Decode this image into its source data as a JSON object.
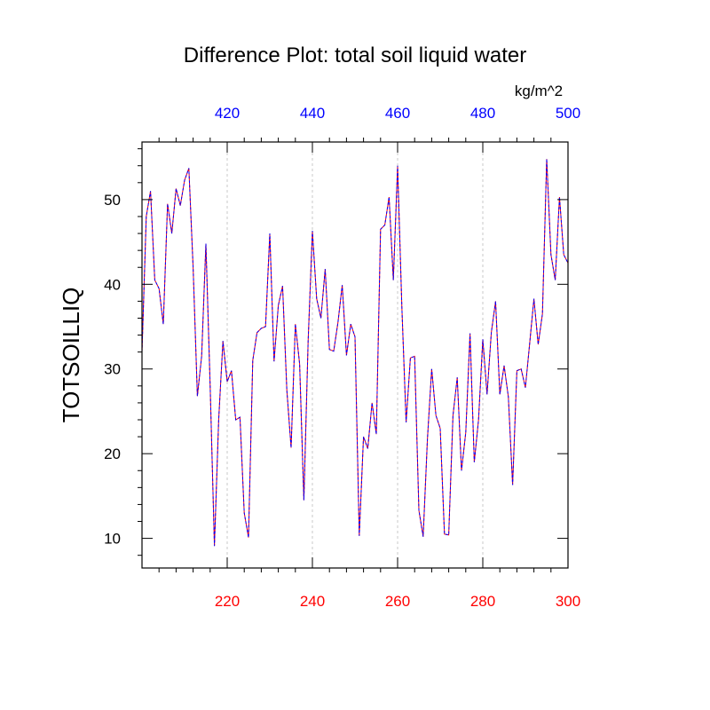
{
  "chart_data": {
    "type": "line",
    "title": "Difference Plot: total soil liquid water",
    "units": "kg/m^2",
    "ylabel": "TOTSOILLIQ",
    "xlabel": "",
    "bottom_axis": {
      "range": [
        200,
        300
      ],
      "ticks": [
        220,
        240,
        260,
        280,
        300
      ],
      "tick_labels": [
        "220",
        "240",
        "260",
        "280",
        "300"
      ],
      "color": "#ff0000"
    },
    "top_axis": {
      "range": [
        400,
        500
      ],
      "ticks": [
        420,
        440,
        460,
        480,
        500
      ],
      "tick_labels": [
        "420",
        "440",
        "460",
        "480",
        "500"
      ],
      "color": "#0000ff"
    },
    "ylim": [
      6.5,
      56.8
    ],
    "y_ticks": [
      10,
      20,
      30,
      40,
      50
    ],
    "y_tick_labels": [
      "10",
      "20",
      "30",
      "40",
      "50"
    ],
    "grid": "vertical dotted lines at top/bottom axis ticks",
    "series": [
      {
        "name": "bottom-axis series",
        "color": "#ff0000",
        "x": [
          200,
          201,
          202,
          203,
          204,
          205,
          206,
          207,
          208,
          209,
          210,
          211,
          212,
          213,
          214,
          215,
          216,
          217,
          218,
          219,
          220,
          221,
          222,
          223,
          224,
          225,
          226,
          227,
          228,
          229,
          230,
          231,
          232,
          233,
          234,
          235,
          236,
          237,
          238,
          239,
          240,
          241,
          242,
          243,
          244,
          245,
          246,
          247,
          248,
          249,
          250,
          251,
          252,
          253,
          254,
          255,
          256,
          257,
          258,
          259,
          260,
          261,
          262,
          263,
          264,
          265,
          266,
          267,
          268,
          269,
          270,
          271,
          272,
          273,
          274,
          275,
          276,
          277,
          278,
          279,
          280,
          281,
          282,
          283,
          284,
          285,
          286,
          287,
          288,
          289,
          290,
          291,
          292,
          293,
          294,
          295,
          296,
          297,
          298,
          299,
          300
        ],
        "values": [
          32,
          48,
          51,
          40.5,
          39.5,
          35.3,
          49.5,
          46,
          51.3,
          49.3,
          52.3,
          53.7,
          42,
          26.8,
          31.5,
          44.8,
          28,
          9.1,
          24,
          33.3,
          28.5,
          29.8,
          24,
          24.3,
          13,
          10.1,
          31,
          34.3,
          34.8,
          35,
          46,
          30.9,
          37.5,
          39.8,
          27.5,
          20.7,
          35.3,
          30.6,
          14.5,
          33.3,
          46.3,
          38.3,
          36,
          41.8,
          32.3,
          32.1,
          35.5,
          39.9,
          31.6,
          35.3,
          33.8,
          10.3,
          22,
          20.6,
          26,
          22.3,
          46.5,
          47,
          50.3,
          40.5,
          54,
          37.3,
          23.7,
          31.3,
          31.5,
          13.3,
          10.2,
          21.7,
          30,
          24.5,
          23,
          10.5,
          10.4,
          24.5,
          29,
          18,
          22.5,
          34.2,
          19,
          24,
          33.5,
          27,
          34.3,
          38,
          27,
          30.4,
          26.7,
          16.3,
          29.8,
          30,
          27.8,
          33,
          38.3,
          32.9,
          36.5,
          54.8,
          43.5,
          40.5,
          50.3,
          43.5,
          42.5
        ]
      },
      {
        "name": "top-axis series",
        "color": "#0000ff",
        "x": [
          400,
          401,
          402,
          403,
          404,
          405,
          406,
          407,
          408,
          409,
          410,
          411,
          412,
          413,
          414,
          415,
          416,
          417,
          418,
          419,
          420,
          421,
          422,
          423,
          424,
          425,
          426,
          427,
          428,
          429,
          430,
          431,
          432,
          433,
          434,
          435,
          436,
          437,
          438,
          439,
          440,
          441,
          442,
          443,
          444,
          445,
          446,
          447,
          448,
          449,
          450,
          451,
          452,
          453,
          454,
          455,
          456,
          457,
          458,
          459,
          460,
          461,
          462,
          463,
          464,
          465,
          466,
          467,
          468,
          469,
          470,
          471,
          472,
          473,
          474,
          475,
          476,
          477,
          478,
          479,
          480,
          481,
          482,
          483,
          484,
          485,
          486,
          487,
          488,
          489,
          490,
          491,
          492,
          493,
          494,
          495,
          496,
          497,
          498,
          499,
          500
        ],
        "values": [
          32,
          48,
          51,
          40.5,
          39.5,
          35.3,
          49.5,
          46,
          51.3,
          49.3,
          52.3,
          53.7,
          42,
          26.8,
          31.5,
          44.8,
          28,
          9.1,
          24,
          33.3,
          28.5,
          29.8,
          24,
          24.3,
          13,
          10.1,
          31,
          34.3,
          34.8,
          35,
          46,
          30.9,
          37.5,
          39.8,
          27.5,
          20.7,
          35.3,
          30.6,
          14.5,
          33.3,
          46.3,
          38.3,
          36,
          41.8,
          32.3,
          32.1,
          35.5,
          39.9,
          31.6,
          35.3,
          33.8,
          10.3,
          22,
          20.6,
          26,
          22.3,
          46.5,
          47,
          50.3,
          40.5,
          54,
          37.3,
          23.7,
          31.3,
          31.5,
          13.3,
          10.2,
          21.7,
          30,
          24.5,
          23,
          10.5,
          10.4,
          24.5,
          29,
          18,
          22.5,
          34.2,
          19,
          24,
          33.5,
          27,
          34.3,
          38,
          27,
          30.4,
          26.7,
          16.3,
          29.8,
          30,
          27.8,
          33,
          38.3,
          32.9,
          36.5,
          54.8,
          43.5,
          40.5,
          50.3,
          43.5,
          42.5
        ]
      }
    ]
  }
}
